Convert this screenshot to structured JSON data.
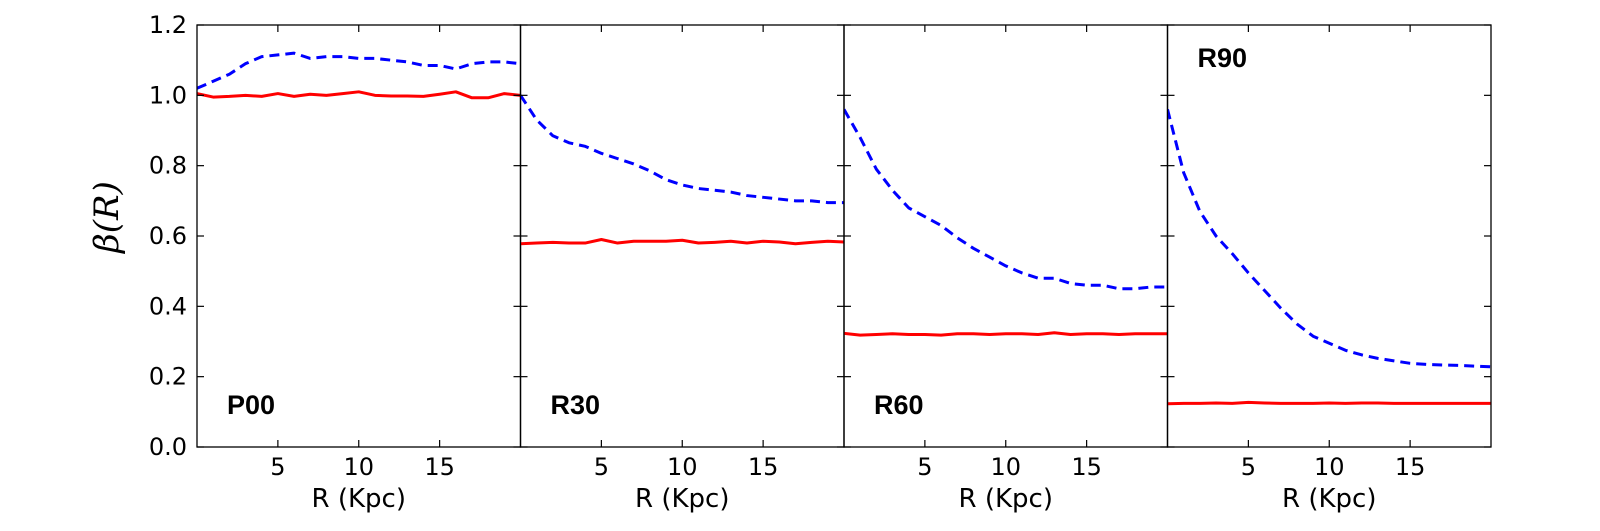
{
  "chart_data": {
    "type": "line",
    "ylabel": "β(R)",
    "ylim": [
      0.0,
      1.2
    ],
    "yticks": [
      0.0,
      0.2,
      0.4,
      0.6,
      0.8,
      1.0,
      1.2
    ],
    "ytick_labels": [
      "0.0",
      "0.2",
      "0.4",
      "0.6",
      "0.8",
      "1.0",
      "1.2"
    ],
    "xlim": [
      0,
      20
    ],
    "xticks": [
      5,
      10,
      15
    ],
    "xtick_labels": [
      "5",
      "10",
      "15"
    ],
    "xlabel": "R (Kpc)",
    "x": [
      0,
      1,
      2,
      3,
      4,
      5,
      6,
      7,
      8,
      9,
      10,
      11,
      12,
      13,
      14,
      15,
      16,
      17,
      18,
      19,
      20
    ],
    "panels": [
      {
        "label": "P00",
        "label_position": "bottom-left",
        "series": [
          {
            "name": "dashed",
            "color": "#0000ff",
            "style": "dashed",
            "values": [
              1.02,
              1.04,
              1.06,
              1.09,
              1.11,
              1.115,
              1.12,
              1.105,
              1.11,
              1.11,
              1.105,
              1.105,
              1.1,
              1.095,
              1.085,
              1.085,
              1.075,
              1.09,
              1.095,
              1.095,
              1.09
            ]
          },
          {
            "name": "solid",
            "color": "#ff0000",
            "style": "solid",
            "values": [
              1.005,
              0.995,
              0.997,
              1.0,
              0.997,
              1.005,
              0.997,
              1.003,
              1.0,
              1.005,
              1.01,
              1.0,
              0.998,
              0.998,
              0.997,
              1.003,
              1.01,
              0.993,
              0.993,
              1.005,
              1.0
            ]
          }
        ]
      },
      {
        "label": "R30",
        "label_position": "bottom-left",
        "series": [
          {
            "name": "dashed",
            "color": "#0000ff",
            "style": "dashed",
            "values": [
              1.0,
              0.93,
              0.885,
              0.865,
              0.855,
              0.835,
              0.82,
              0.805,
              0.785,
              0.76,
              0.745,
              0.735,
              0.73,
              0.725,
              0.715,
              0.71,
              0.705,
              0.7,
              0.7,
              0.695,
              0.695
            ]
          },
          {
            "name": "solid",
            "color": "#ff0000",
            "style": "solid",
            "values": [
              0.578,
              0.58,
              0.582,
              0.58,
              0.58,
              0.59,
              0.58,
              0.585,
              0.585,
              0.585,
              0.588,
              0.58,
              0.582,
              0.585,
              0.58,
              0.585,
              0.583,
              0.578,
              0.582,
              0.585,
              0.583
            ]
          }
        ]
      },
      {
        "label": "R60",
        "label_position": "bottom-left",
        "series": [
          {
            "name": "dashed",
            "color": "#0000ff",
            "style": "dashed",
            "values": [
              0.96,
              0.88,
              0.79,
              0.73,
              0.68,
              0.655,
              0.63,
              0.595,
              0.565,
              0.54,
              0.515,
              0.495,
              0.48,
              0.48,
              0.465,
              0.46,
              0.46,
              0.45,
              0.45,
              0.455,
              0.455
            ]
          },
          {
            "name": "solid",
            "color": "#ff0000",
            "style": "solid",
            "values": [
              0.323,
              0.318,
              0.32,
              0.322,
              0.32,
              0.32,
              0.318,
              0.322,
              0.322,
              0.32,
              0.322,
              0.322,
              0.32,
              0.325,
              0.32,
              0.322,
              0.322,
              0.32,
              0.322,
              0.322,
              0.322
            ]
          }
        ]
      },
      {
        "label": "R90",
        "label_position": "top-left",
        "series": [
          {
            "name": "dashed",
            "color": "#0000ff",
            "style": "dashed",
            "values": [
              0.96,
              0.78,
              0.67,
              0.6,
              0.55,
              0.495,
              0.445,
              0.395,
              0.35,
              0.315,
              0.295,
              0.275,
              0.262,
              0.252,
              0.245,
              0.238,
              0.235,
              0.233,
              0.232,
              0.23,
              0.228
            ]
          },
          {
            "name": "solid",
            "color": "#ff0000",
            "style": "solid",
            "values": [
              0.123,
              0.124,
              0.124,
              0.125,
              0.124,
              0.127,
              0.125,
              0.124,
              0.124,
              0.124,
              0.125,
              0.124,
              0.125,
              0.125,
              0.124,
              0.124,
              0.124,
              0.124,
              0.124,
              0.124,
              0.124
            ]
          }
        ]
      }
    ]
  }
}
